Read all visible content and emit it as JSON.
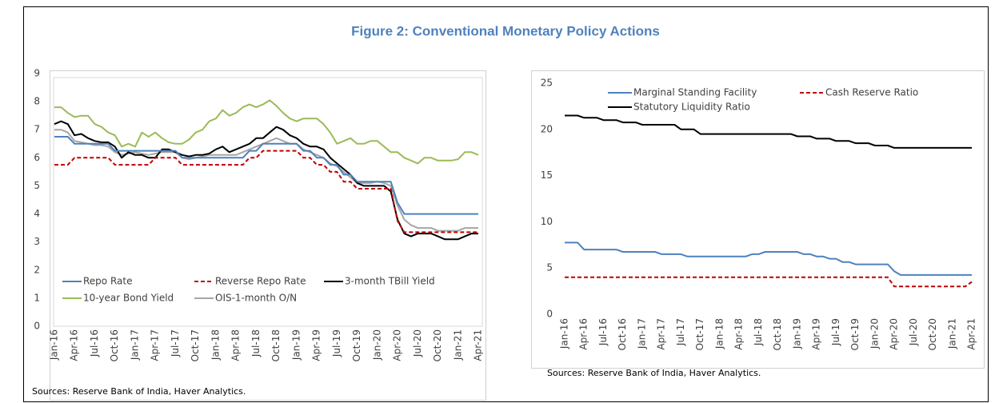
{
  "figure_title": "Figure 2: Conventional Monetary Policy Actions",
  "chart_data": [
    {
      "type": "line",
      "categories": [
        "Jan-16",
        null,
        null,
        "Apr-16",
        null,
        null,
        "Jul-16",
        null,
        null,
        "Oct-16",
        null,
        null,
        "Jan-17",
        null,
        null,
        "Apr-17",
        null,
        null,
        "Jul-17",
        null,
        null,
        "Oct-17",
        null,
        null,
        "Jan-18",
        null,
        null,
        "Apr-18",
        null,
        null,
        "Jul-18",
        null,
        null,
        "Oct-18",
        null,
        null,
        "Jan-19",
        null,
        null,
        "Apr-19",
        null,
        null,
        "Jul-19",
        null,
        null,
        "Oct-19",
        null,
        null,
        "Jan-20",
        null,
        null,
        "Apr-20",
        null,
        null,
        "Jul-20",
        null,
        null,
        "Oct-20",
        null,
        null,
        "Jan-21",
        null,
        null,
        "Apr-21"
      ],
      "ylim": [
        0,
        9
      ],
      "yticks": [
        0,
        1,
        2,
        3,
        4,
        5,
        6,
        7,
        8,
        9
      ],
      "legend": "lower left",
      "source": "Sources: Reserve Bank of India, Haver Analytics.",
      "series": [
        {
          "name": "Repo Rate",
          "color": "#4f81bd",
          "dash": false,
          "values": [
            6.75,
            6.75,
            6.75,
            6.5,
            6.5,
            6.5,
            6.5,
            6.5,
            6.5,
            6.25,
            6.25,
            6.25,
            6.25,
            6.25,
            6.25,
            6.25,
            6.25,
            6.25,
            6.25,
            6,
            6,
            6,
            6,
            6,
            6,
            6,
            6,
            6,
            6,
            6.25,
            6.25,
            6.5,
            6.5,
            6.5,
            6.5,
            6.5,
            6.5,
            6.25,
            6.25,
            6,
            6,
            5.75,
            5.75,
            5.4,
            5.4,
            5.15,
            5.15,
            5.15,
            5.15,
            5.15,
            5.15,
            4.4,
            4,
            4,
            4,
            4,
            4,
            4,
            4,
            4,
            4,
            4,
            4,
            4
          ]
        },
        {
          "name": "Reverse Repo Rate",
          "color": "#c00000",
          "dash": true,
          "values": [
            5.75,
            5.75,
            5.75,
            6,
            6,
            6,
            6,
            6,
            6,
            5.75,
            5.75,
            5.75,
            5.75,
            5.75,
            5.75,
            6,
            6,
            6,
            6,
            5.75,
            5.75,
            5.75,
            5.75,
            5.75,
            5.75,
            5.75,
            5.75,
            5.75,
            5.75,
            6,
            6,
            6.25,
            6.25,
            6.25,
            6.25,
            6.25,
            6.25,
            6,
            6,
            5.75,
            5.75,
            5.5,
            5.5,
            5.15,
            5.15,
            4.9,
            4.9,
            4.9,
            4.9,
            4.9,
            4.9,
            3.75,
            3.35,
            3.35,
            3.35,
            3.35,
            3.35,
            3.35,
            3.35,
            3.35,
            3.35,
            3.35,
            3.35,
            3.35
          ]
        },
        {
          "name": "3-month TBill Yield",
          "color": "#000000",
          "dash": false,
          "values": [
            7.2,
            7.3,
            7.2,
            6.8,
            6.85,
            6.7,
            6.6,
            6.55,
            6.55,
            6.4,
            6,
            6.2,
            6.1,
            6.1,
            6,
            6,
            6.3,
            6.3,
            6.2,
            6.1,
            6.05,
            6.1,
            6.1,
            6.15,
            6.3,
            6.4,
            6.2,
            6.3,
            6.4,
            6.5,
            6.7,
            6.7,
            6.9,
            7.1,
            7,
            6.8,
            6.7,
            6.5,
            6.4,
            6.4,
            6.3,
            6,
            5.8,
            5.6,
            5.4,
            5.1,
            5,
            5,
            5,
            5,
            4.8,
            3.8,
            3.3,
            3.2,
            3.3,
            3.3,
            3.3,
            3.2,
            3.1,
            3.1,
            3.1,
            3.2,
            3.3,
            3.3
          ]
        },
        {
          "name": "10-year Bond Yield",
          "color": "#9bbb59",
          "dash": false,
          "values": [
            7.8,
            7.8,
            7.6,
            7.45,
            7.5,
            7.5,
            7.2,
            7.1,
            6.9,
            6.8,
            6.4,
            6.5,
            6.4,
            6.9,
            6.75,
            6.9,
            6.7,
            6.55,
            6.5,
            6.5,
            6.65,
            6.9,
            7,
            7.3,
            7.4,
            7.7,
            7.5,
            7.6,
            7.8,
            7.9,
            7.8,
            7.9,
            8.05,
            7.85,
            7.6,
            7.4,
            7.3,
            7.4,
            7.4,
            7.4,
            7.2,
            6.9,
            6.5,
            6.6,
            6.7,
            6.5,
            6.5,
            6.6,
            6.6,
            6.4,
            6.2,
            6.2,
            6,
            5.9,
            5.8,
            6,
            6,
            5.9,
            5.9,
            5.9,
            5.95,
            6.2,
            6.2,
            6.1
          ]
        },
        {
          "name": "OIS-1-month O/N",
          "color": "#a6a6a6",
          "dash": false,
          "values": [
            7,
            7,
            6.9,
            6.6,
            6.55,
            6.5,
            6.45,
            6.45,
            6.4,
            6.2,
            6.1,
            6.15,
            6.2,
            6.15,
            6.1,
            6.15,
            6.2,
            6.2,
            6.2,
            6,
            5.95,
            6,
            6.05,
            6.1,
            6.1,
            6.1,
            6.1,
            6.1,
            6.2,
            6.3,
            6.4,
            6.5,
            6.6,
            6.7,
            6.6,
            6.5,
            6.5,
            6.3,
            6.2,
            6.1,
            6,
            5.8,
            5.7,
            5.5,
            5.3,
            5.1,
            5.1,
            5.1,
            5.15,
            5.1,
            5,
            4.3,
            3.8,
            3.6,
            3.5,
            3.5,
            3.5,
            3.4,
            3.4,
            3.4,
            3.4,
            3.5,
            3.5,
            3.5
          ]
        }
      ]
    },
    {
      "type": "line",
      "categories": [
        "Jan-16",
        null,
        null,
        "Apr-16",
        null,
        null,
        "Jul-16",
        null,
        null,
        "Oct-16",
        null,
        null,
        "Jan-17",
        null,
        null,
        "Apr-17",
        null,
        null,
        "Jul-17",
        null,
        null,
        "Oct-17",
        null,
        null,
        "Jan-18",
        null,
        null,
        "Apr-18",
        null,
        null,
        "Jul-18",
        null,
        null,
        "Oct-18",
        null,
        null,
        "Jan-19",
        null,
        null,
        "Apr-19",
        null,
        null,
        "Jul-19",
        null,
        null,
        "Oct-19",
        null,
        null,
        "Jan-20",
        null,
        null,
        "Apr-20",
        null,
        null,
        "Jul-20",
        null,
        null,
        "Oct-20",
        null,
        null,
        "Jan-21",
        null,
        null,
        "Apr-21"
      ],
      "ylim": [
        0,
        25
      ],
      "yticks": [
        0,
        5,
        10,
        15,
        20,
        25
      ],
      "legend": "upper left",
      "source": "Sources: Reserve Bank of India, Haver Analytics.",
      "series": [
        {
          "name": "Marginal Standing Facility",
          "color": "#4f81bd",
          "dash": false,
          "values": [
            7.75,
            7.75,
            7.75,
            7,
            7,
            7,
            7,
            7,
            7,
            6.75,
            6.75,
            6.75,
            6.75,
            6.75,
            6.75,
            6.5,
            6.5,
            6.5,
            6.5,
            6.25,
            6.25,
            6.25,
            6.25,
            6.25,
            6.25,
            6.25,
            6.25,
            6.25,
            6.25,
            6.5,
            6.5,
            6.75,
            6.75,
            6.75,
            6.75,
            6.75,
            6.75,
            6.5,
            6.5,
            6.25,
            6.25,
            6,
            6,
            5.65,
            5.65,
            5.4,
            5.4,
            5.4,
            5.4,
            5.4,
            5.4,
            4.65,
            4.25,
            4.25,
            4.25,
            4.25,
            4.25,
            4.25,
            4.25,
            4.25,
            4.25,
            4.25,
            4.25,
            4.25
          ]
        },
        {
          "name": "Cash Reserve Ratio",
          "color": "#c00000",
          "dash": true,
          "values": [
            4,
            4,
            4,
            4,
            4,
            4,
            4,
            4,
            4,
            4,
            4,
            4,
            4,
            4,
            4,
            4,
            4,
            4,
            4,
            4,
            4,
            4,
            4,
            4,
            4,
            4,
            4,
            4,
            4,
            4,
            4,
            4,
            4,
            4,
            4,
            4,
            4,
            4,
            4,
            4,
            4,
            4,
            4,
            4,
            4,
            4,
            4,
            4,
            4,
            4,
            4,
            3,
            3,
            3,
            3,
            3,
            3,
            3,
            3,
            3,
            3,
            3,
            3,
            3.5
          ]
        },
        {
          "name": "Statutory Liquidity Ratio",
          "color": "#000000",
          "dash": false,
          "values": [
            21.5,
            21.5,
            21.5,
            21.25,
            21.25,
            21.25,
            21,
            21,
            21,
            20.75,
            20.75,
            20.75,
            20.5,
            20.5,
            20.5,
            20.5,
            20.5,
            20.5,
            20,
            20,
            20,
            19.5,
            19.5,
            19.5,
            19.5,
            19.5,
            19.5,
            19.5,
            19.5,
            19.5,
            19.5,
            19.5,
            19.5,
            19.5,
            19.5,
            19.5,
            19.25,
            19.25,
            19.25,
            19,
            19,
            19,
            18.75,
            18.75,
            18.75,
            18.5,
            18.5,
            18.5,
            18.25,
            18.25,
            18.25,
            18,
            18,
            18,
            18,
            18,
            18,
            18,
            18,
            18,
            18,
            18,
            18,
            18
          ]
        }
      ]
    }
  ]
}
